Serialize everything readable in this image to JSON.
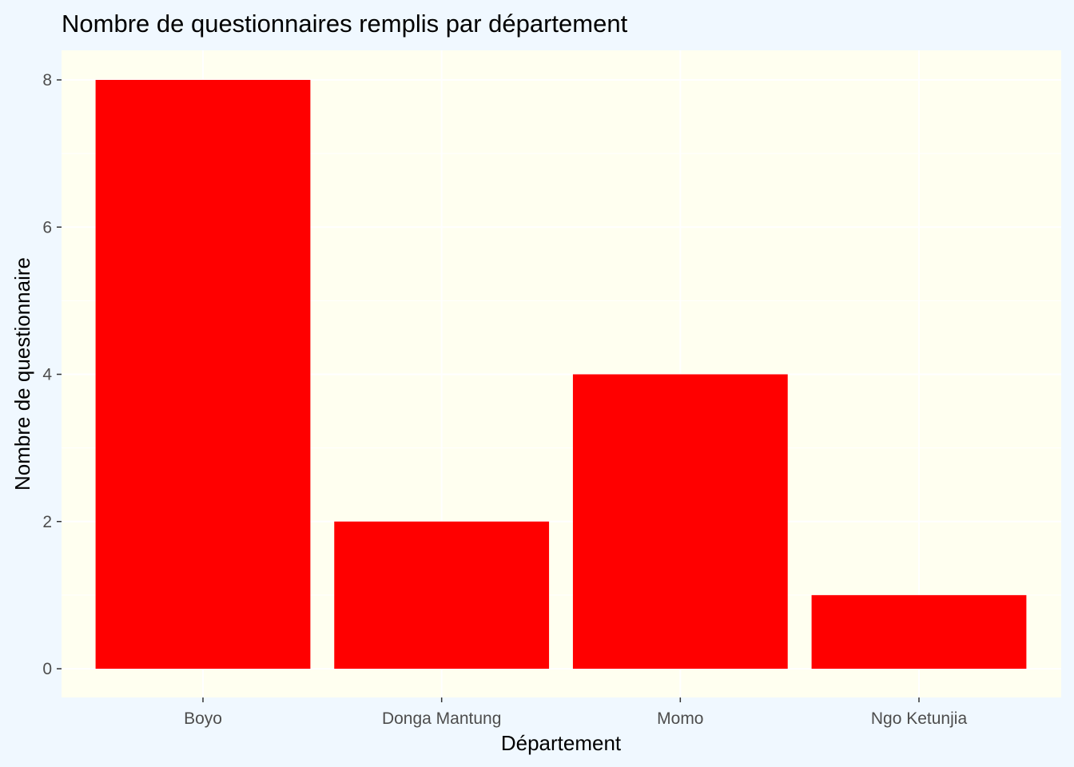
{
  "colors": {
    "page_background": "#f0f8ff",
    "panel_background": "#fffff0",
    "grid": "#ffffff",
    "bar_fill": "#ff0000",
    "tick": "#333333"
  },
  "chart_data": {
    "type": "bar",
    "title": "Nombre de questionnaires remplis par département",
    "xlabel": "Département",
    "ylabel": "Nombre de questionnaire",
    "categories": [
      "Boyo",
      "Donga Mantung",
      "Momo",
      "Ngo Ketunjia"
    ],
    "values": [
      8,
      2,
      4,
      1
    ],
    "ylim": [
      0,
      8.4
    ],
    "yticks": [
      0,
      2,
      4,
      6,
      8
    ],
    "grid": true,
    "legend": "none"
  }
}
